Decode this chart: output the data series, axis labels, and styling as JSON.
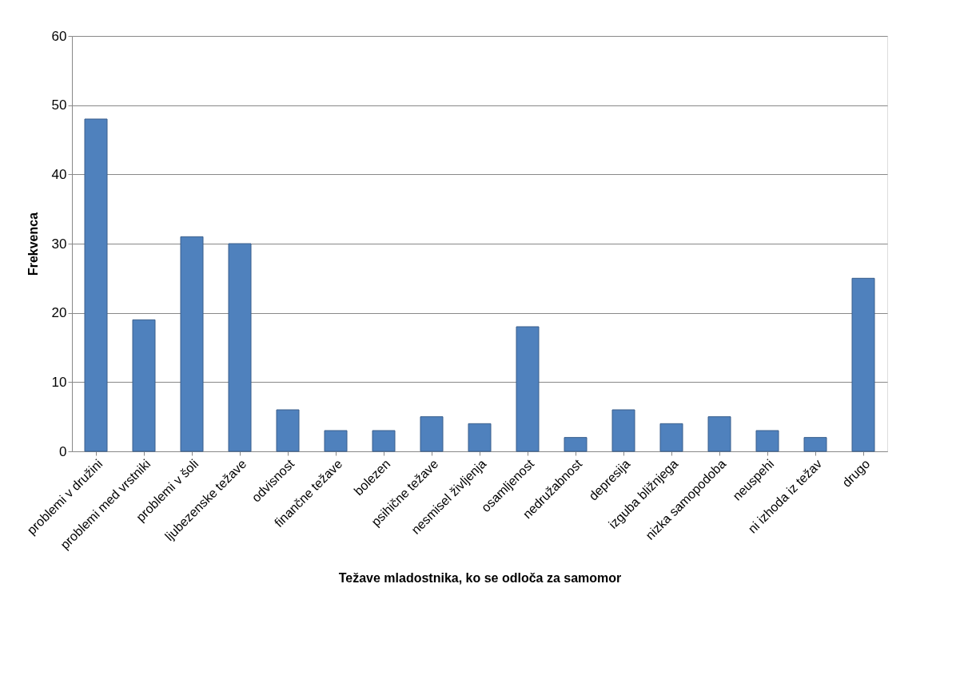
{
  "chart_data": {
    "type": "bar",
    "xlabel": "Težave mladostnika, ko se odloča za samomor",
    "ylabel": "Frekvenca",
    "categories": [
      "problemi v družini",
      "problemi med vrstniki",
      "problemi v šoli",
      "ljubezenske težave",
      "odvisnost",
      "finančne težave",
      "bolezen",
      "psihične težave",
      "nesmisel življenja",
      "osamljenost",
      "nedružabnost",
      "depresija",
      "izguba bližnjega",
      "nizka samopodoba",
      "neuspehi",
      "ni izhoda iz težav",
      "drugo"
    ],
    "values": [
      48,
      19,
      31,
      30,
      6,
      3,
      3,
      5,
      4,
      18,
      2,
      6,
      4,
      5,
      3,
      2,
      25
    ],
    "color": "#4f81bd",
    "ylim": [
      0,
      60
    ],
    "yticks": [
      0,
      10,
      20,
      30,
      40,
      50,
      60
    ],
    "grid": "y"
  }
}
